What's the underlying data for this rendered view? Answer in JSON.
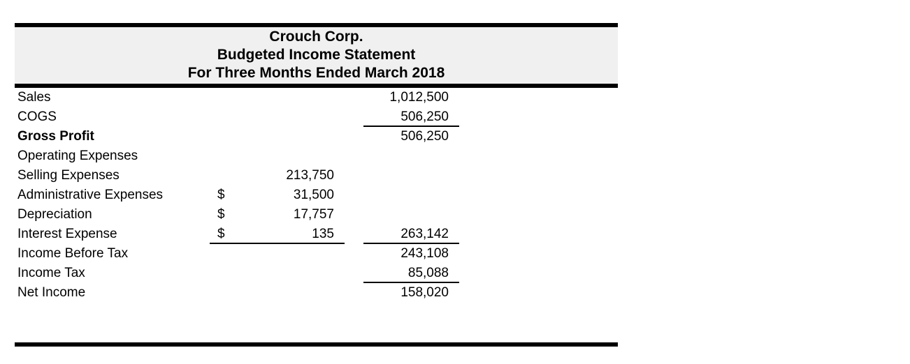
{
  "statement": {
    "company": "Crouch Corp.",
    "title_lines": [
      "Crouch Corp.",
      "Budgeted Income Statement",
      "For Three Months Ended March 2018"
    ],
    "rows": [
      {
        "label": "Sales",
        "bold": false,
        "dollar": "",
        "col1": "",
        "ul1": false,
        "col2": "1,012,500",
        "ul2": false
      },
      {
        "label": "COGS",
        "bold": false,
        "dollar": "",
        "col1": "",
        "ul1": false,
        "col2": "506,250",
        "ul2": true
      },
      {
        "label": "Gross Profit",
        "bold": true,
        "dollar": "",
        "col1": "",
        "ul1": false,
        "col2": "506,250",
        "ul2": false
      },
      {
        "label": "Operating Expenses",
        "bold": false,
        "dollar": "",
        "col1": "",
        "ul1": false,
        "col2": "",
        "ul2": false
      },
      {
        "label": "Selling Expenses",
        "bold": false,
        "dollar": "",
        "col1": "213,750",
        "ul1": false,
        "col2": "",
        "ul2": false
      },
      {
        "label": "Administrative Expenses",
        "bold": false,
        "dollar": "$",
        "col1": "31,500",
        "ul1": false,
        "col2": "",
        "ul2": false
      },
      {
        "label": "Depreciation",
        "bold": false,
        "dollar": "$",
        "col1": "17,757",
        "ul1": false,
        "col2": "",
        "ul2": false
      },
      {
        "label": "Interest Expense",
        "bold": false,
        "dollar": "$",
        "col1": "135",
        "ul1": true,
        "col2": "263,142",
        "ul2": true
      },
      {
        "label": "Income Before Tax",
        "bold": false,
        "dollar": "",
        "col1": "",
        "ul1": false,
        "col2": "243,108",
        "ul2": false
      },
      {
        "label": "Income Tax",
        "bold": false,
        "dollar": "",
        "col1": "",
        "ul1": false,
        "col2": "85,088",
        "ul2": true
      },
      {
        "label": "Net Income",
        "bold": false,
        "dollar": "",
        "col1": "",
        "ul1": false,
        "col2": "158,020",
        "ul2": false
      }
    ]
  },
  "colors": {
    "header_bg": "#f0f0f0",
    "rule": "#000000",
    "text": "#000000"
  }
}
